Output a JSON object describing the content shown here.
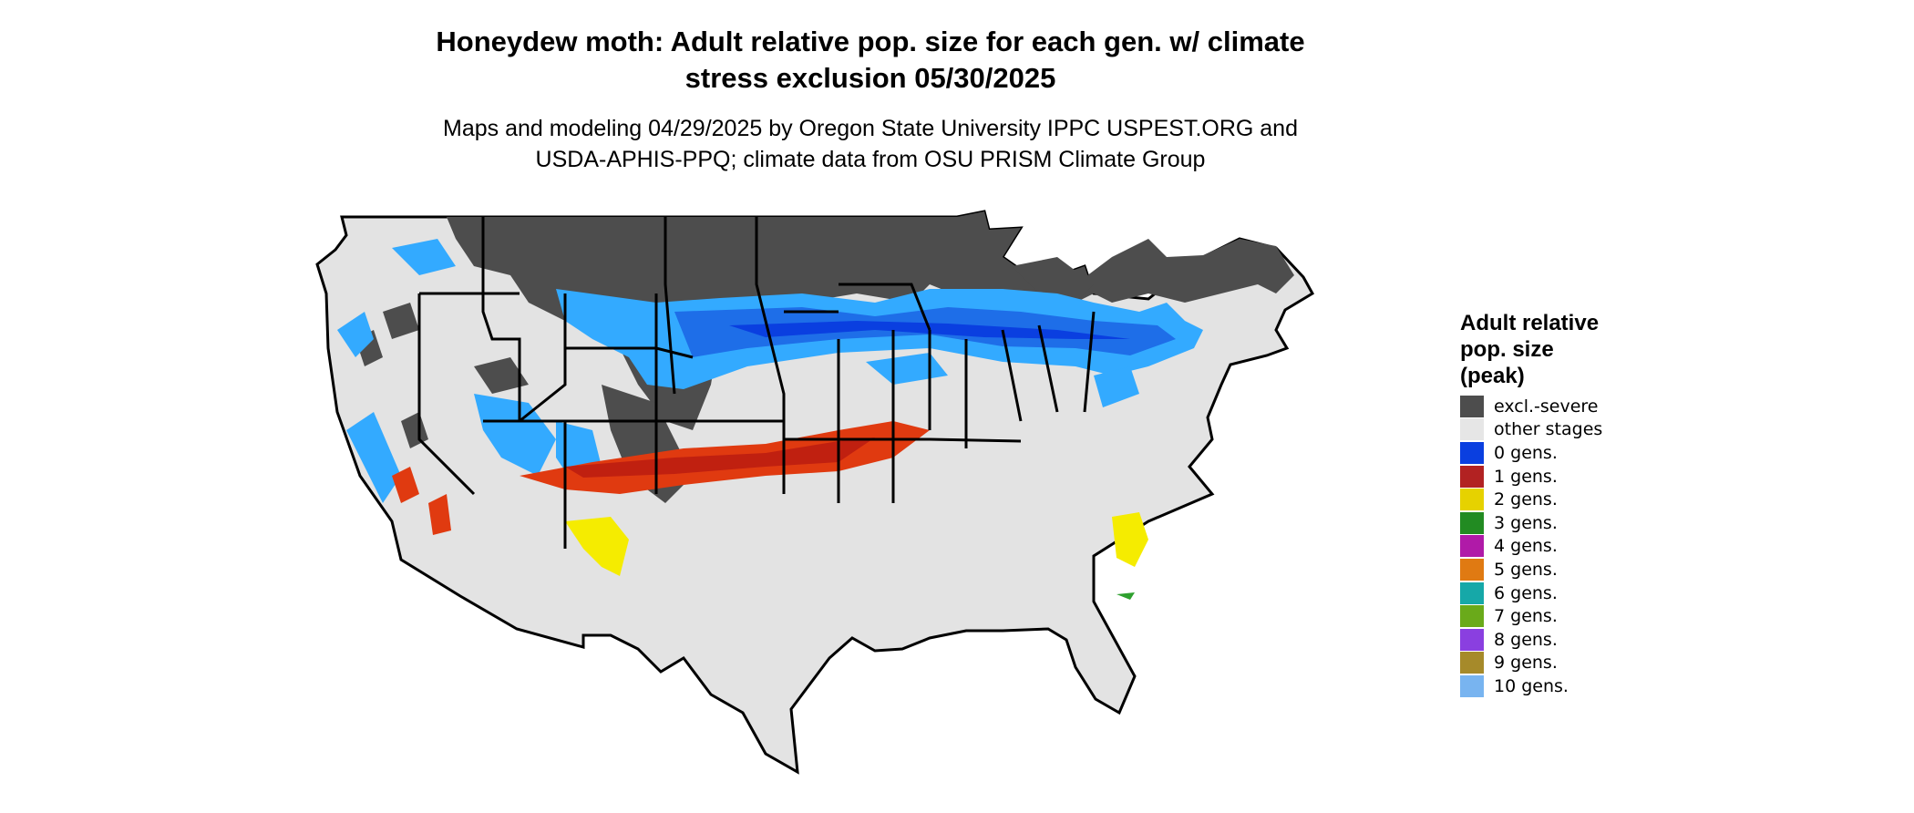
{
  "title_line1": "Honeydew moth: Adult relative pop. size for each gen. w/ climate",
  "title_line2": "stress exclusion 05/30/2025",
  "subtitle_line1": "Maps and modeling 04/29/2025 by Oregon State University IPPC USPEST.ORG and",
  "subtitle_line2": "USDA-APHIS-PPQ; climate data from OSU PRISM Climate Group",
  "legend": {
    "title_lines": [
      "Adult relative",
      "pop. size",
      "(peak)"
    ],
    "items": [
      {
        "label": "excl.-severe",
        "color": "#4d4d4d"
      },
      {
        "label": "other stages",
        "color": "#e6e6e6"
      },
      {
        "label": "0 gens.",
        "color": "#0a3fe0"
      },
      {
        "label": "1 gens.",
        "color": "#b22222"
      },
      {
        "label": "2 gens.",
        "color": "#e6d200"
      },
      {
        "label": "3 gens.",
        "color": "#228b22"
      },
      {
        "label": "4 gens.",
        "color": "#b01aa8"
      },
      {
        "label": "5 gens.",
        "color": "#e07a12"
      },
      {
        "label": "6 gens.",
        "color": "#16a8a8"
      },
      {
        "label": "7 gens.",
        "color": "#6aaa1a"
      },
      {
        "label": "8 gens.",
        "color": "#8a3fe0"
      },
      {
        "label": "9 gens.",
        "color": "#a68a2a"
      },
      {
        "label": "10 gens.",
        "color": "#78b4f0"
      }
    ]
  },
  "map_colors": {
    "background": "#e3e3e3",
    "excluded": "#4d4d4d",
    "blue_light": "#33aaff",
    "blue_mid": "#1e6ee8",
    "blue_dark": "#0a3fe0",
    "red_orange": "#e03a10",
    "red_dark": "#c02010",
    "yellow": "#f5ec00",
    "green": "#2ea02e",
    "border": "#000000"
  }
}
